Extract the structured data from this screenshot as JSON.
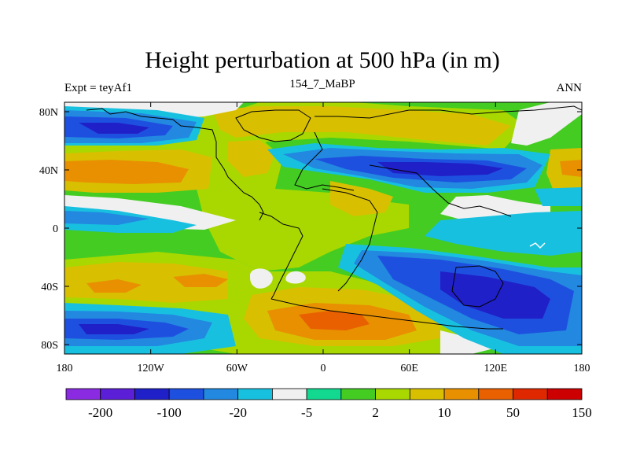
{
  "title": "Height perturbation at 500 hPa (in m)",
  "subtitle_left": "Expt = teyAf1",
  "subtitle_center": "154_7_MaBP",
  "subtitle_right": "ANN",
  "y_ticks": [
    "80N",
    "40N",
    "0",
    "40S",
    "80S"
  ],
  "x_ticks": [
    "180",
    "120W",
    "60W",
    "0",
    "60E",
    "120E",
    "180"
  ],
  "colorbar": {
    "colors": [
      "#8a2be2",
      "#5a1fd6",
      "#2020c8",
      "#1e50e0",
      "#2288e0",
      "#18c0e0",
      "#f0f0f0",
      "#12d890",
      "#44cc22",
      "#a8d800",
      "#d8c000",
      "#e89000",
      "#e86000",
      "#e02800",
      "#cc0000"
    ],
    "labels": [
      "-200",
      "-100",
      "-20",
      "-5",
      "2",
      "10",
      "50",
      "150"
    ]
  }
}
